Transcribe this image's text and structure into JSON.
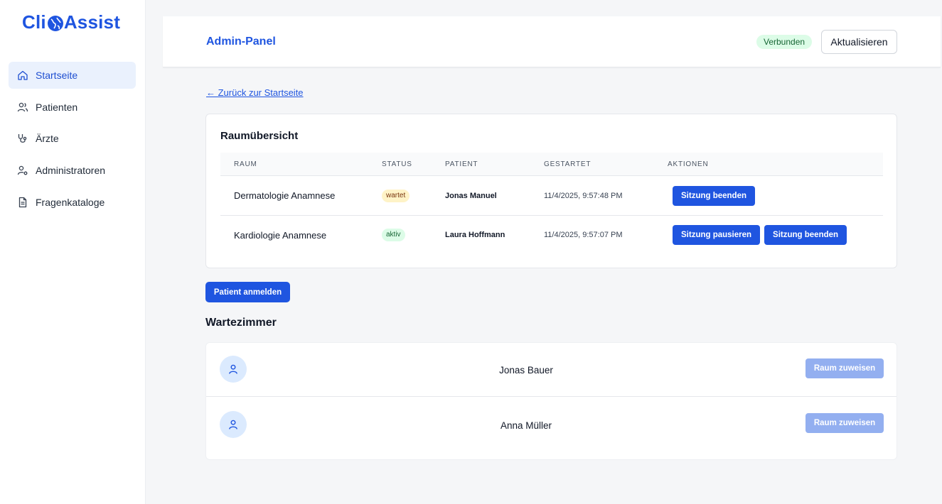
{
  "brand": {
    "name_left": "Cli",
    "name_right": "Assist",
    "color": "#1f55e0"
  },
  "sidebar": {
    "items": [
      {
        "label": "Startseite",
        "icon": "home-icon",
        "active": true
      },
      {
        "label": "Patienten",
        "icon": "users-icon",
        "active": false
      },
      {
        "label": "Ärzte",
        "icon": "stethoscope-icon",
        "active": false
      },
      {
        "label": "Administratoren",
        "icon": "user-gear-icon",
        "active": false
      },
      {
        "label": "Fragenkataloge",
        "icon": "document-icon",
        "active": false
      }
    ]
  },
  "header": {
    "title": "Admin-Panel",
    "status_badge": "Verbunden",
    "refresh_label": "Aktualisieren"
  },
  "back_link": "← Zurück zur Startseite",
  "room_overview": {
    "title": "Raumübersicht",
    "columns": [
      "Raum",
      "Status",
      "Patient",
      "Gestartet",
      "Aktionen"
    ],
    "rows": [
      {
        "room": "Dermatologie Anamnese",
        "status": "wartet",
        "patient": "Jonas Manuel",
        "started": "11/4/2025, 9:57:48 PM",
        "actions": [
          "Sitzung beenden"
        ]
      },
      {
        "room": "Kardiologie Anamnese",
        "status": "aktiv",
        "patient": "Laura Hoffmann",
        "started": "11/4/2025, 9:57:07 PM",
        "actions": [
          "Sitzung pausieren",
          "Sitzung beenden"
        ]
      }
    ]
  },
  "register_patient_label": "Patient anmelden",
  "waiting_room": {
    "title": "Wartezimmer",
    "patients": [
      {
        "name": "Jonas Bauer",
        "action": "Raum zuweisen"
      },
      {
        "name": "Anna Müller",
        "action": "Raum zuweisen"
      }
    ]
  }
}
